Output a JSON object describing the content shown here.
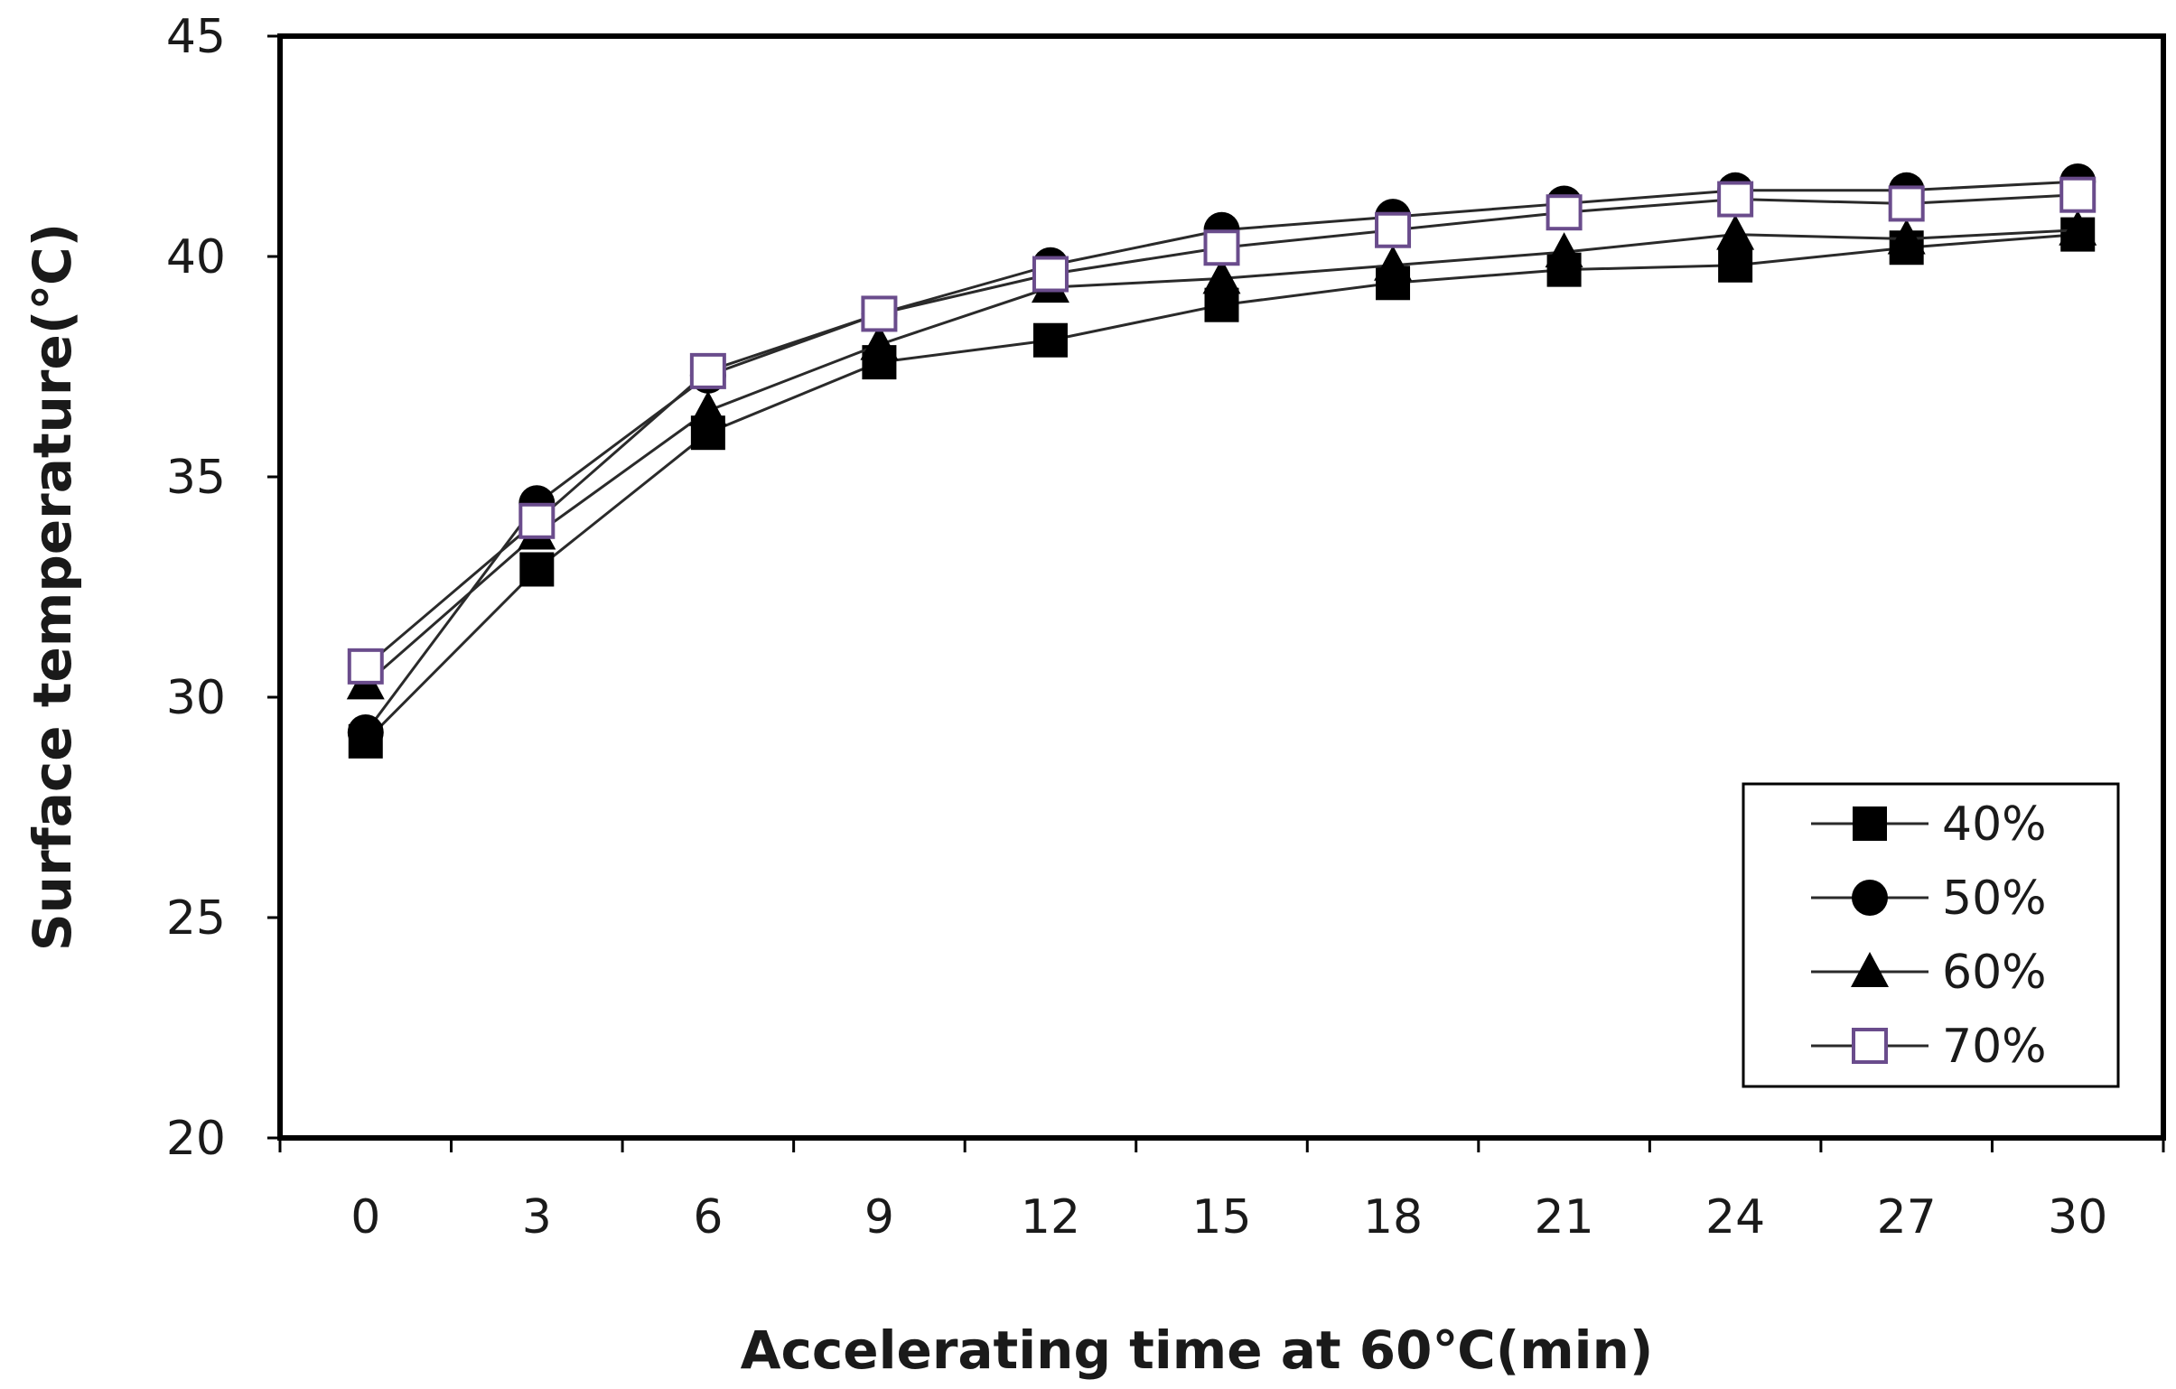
{
  "chart_data": {
    "type": "line",
    "xlabel": "Accelerating time at 60℃(min)",
    "ylabel": "Surface temperature(℃)",
    "x": [
      0,
      3,
      6,
      9,
      12,
      15,
      18,
      21,
      24,
      27,
      30
    ],
    "x_tick_labels": [
      "0",
      "3",
      "6",
      "9",
      "12",
      "15",
      "18",
      "21",
      "24",
      "27",
      "30"
    ],
    "y_tick_labels": [
      "20",
      "25",
      "30",
      "35",
      "40",
      "45"
    ],
    "y_ticks": [
      20,
      25,
      30,
      35,
      40,
      45
    ],
    "ylim": [
      20,
      45
    ],
    "grid": false,
    "legend_position": "bottom-right",
    "series": [
      {
        "name": "40%",
        "marker": "filled-square",
        "values": [
          29.0,
          32.9,
          36.0,
          37.6,
          38.1,
          38.9,
          39.4,
          39.7,
          39.8,
          40.2,
          40.5
        ]
      },
      {
        "name": "50%",
        "marker": "filled-circle",
        "values": [
          29.2,
          34.4,
          37.3,
          38.7,
          39.8,
          40.6,
          40.9,
          41.2,
          41.5,
          41.5,
          41.7
        ]
      },
      {
        "name": "60%",
        "marker": "filled-triangle",
        "values": [
          30.3,
          33.7,
          36.5,
          38.0,
          39.3,
          39.5,
          39.8,
          40.1,
          40.5,
          40.4,
          40.6
        ]
      },
      {
        "name": "70%",
        "marker": "open-square",
        "values": [
          30.7,
          34.0,
          37.4,
          38.7,
          39.6,
          40.2,
          40.6,
          41.0,
          41.3,
          41.2,
          41.4
        ]
      }
    ],
    "colors": {
      "line": "#2a2a2a",
      "marker_fill": "#000000",
      "open_marker_edge": "#6a4c8c",
      "open_marker_fill": "#ffffff"
    }
  }
}
